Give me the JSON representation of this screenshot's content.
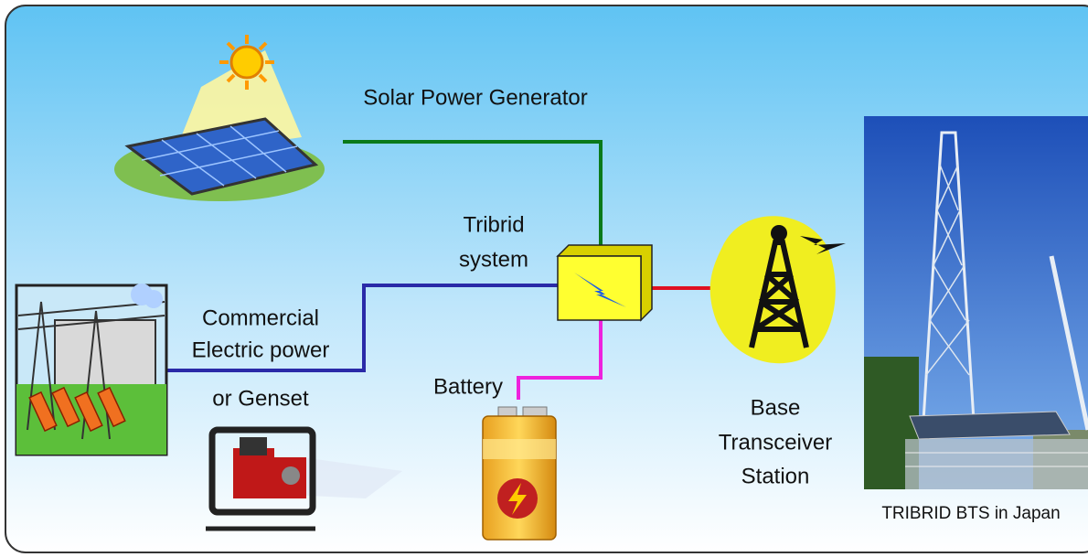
{
  "nodes": {
    "solar": {
      "label": [
        "Solar Power Generator"
      ]
    },
    "tribrid": {
      "label": [
        "Tribrid",
        "system"
      ]
    },
    "commercial": {
      "label": [
        "Commercial",
        "Electric power"
      ]
    },
    "genset": {
      "label": [
        "or Genset"
      ]
    },
    "battery": {
      "label": [
        "Battery"
      ]
    },
    "bts": {
      "label": [
        "Base",
        "Transceiver",
        "Station"
      ]
    },
    "photo": {
      "label": [
        "TRIBRID BTS in Japan"
      ]
    }
  }
}
